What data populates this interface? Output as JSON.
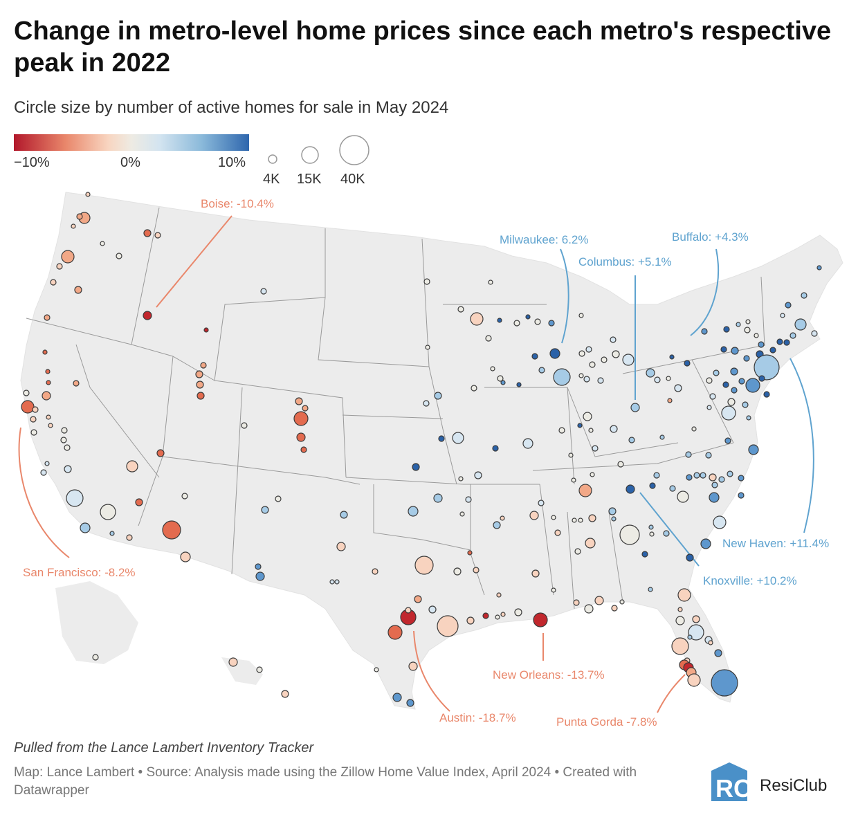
{
  "title": "Change in metro-level home prices since each metro's respective peak in 2022",
  "subtitle": "Circle size by number of active homes for sale in May 2024",
  "legend": {
    "color_ticks": [
      "−10%",
      "0%",
      "10%"
    ],
    "size_labels": [
      "4K",
      "15K",
      "40K"
    ]
  },
  "annotations": {
    "boise": "Boise: -10.4%",
    "milwaukee": "Milwaukee: 6.2%",
    "columbus": "Columbus: +5.1%",
    "buffalo": "Buffalo: +4.3%",
    "san_francisco": "San Francisco: -8.2%",
    "new_haven": "New Haven: +11.4%",
    "knoxville": "Knoxville: +10.2%",
    "new_orleans": "New Orleans: -13.7%",
    "austin": "Austin: -18.7%",
    "punta_gorda": "Punta Gorda -7.8%"
  },
  "colors": {
    "negative_strong": "#b2182b",
    "negative": "#e9876b",
    "neutral": "#eeebe3",
    "positive": "#8ab9da",
    "positive_strong": "#2e66ad",
    "land": "#ececec",
    "negative_annotation": "#e9876b",
    "positive_annotation": "#5fa3cf"
  },
  "note": "Pulled from the Lance Lambert Inventory Tracker",
  "credit": "Map: Lance Lambert • Source: Analysis made using the Zillow Home Value Index, April 2024 • Created with Datawrapper",
  "brand": "ResiClub"
}
